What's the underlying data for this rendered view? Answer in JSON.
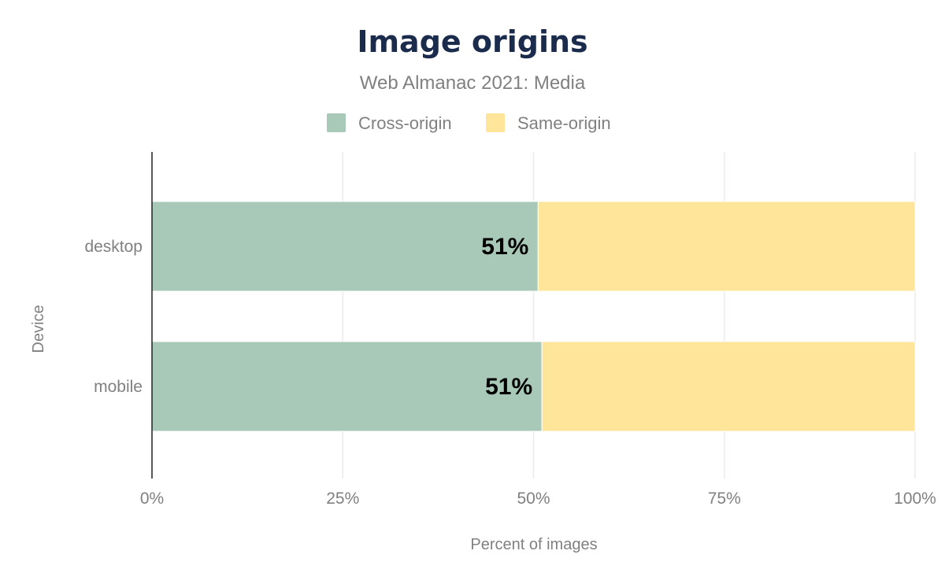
{
  "chart_data": {
    "type": "bar",
    "orientation": "horizontal",
    "stacked": true,
    "title": "Image origins",
    "subtitle": "Web Almanac 2021: Media",
    "xlabel": "Percent of images",
    "ylabel": "Device",
    "categories": [
      "desktop",
      "mobile"
    ],
    "series": [
      {
        "name": "Cross-origin",
        "color": "#a8c9b8",
        "values": [
          50.6,
          51.1
        ],
        "labels": [
          "51%",
          "51%"
        ]
      },
      {
        "name": "Same-origin",
        "color": "#fee599",
        "values": [
          49.4,
          48.9
        ],
        "labels": [
          "",
          ""
        ]
      }
    ],
    "xlim": [
      0,
      100
    ],
    "xticks": [
      {
        "value": 0,
        "label": "0%"
      },
      {
        "value": 25,
        "label": "25%"
      },
      {
        "value": 50,
        "label": "50%"
      },
      {
        "value": 75,
        "label": "75%"
      },
      {
        "value": 100,
        "label": "100%"
      }
    ],
    "grid": true,
    "legend": "top-center"
  }
}
